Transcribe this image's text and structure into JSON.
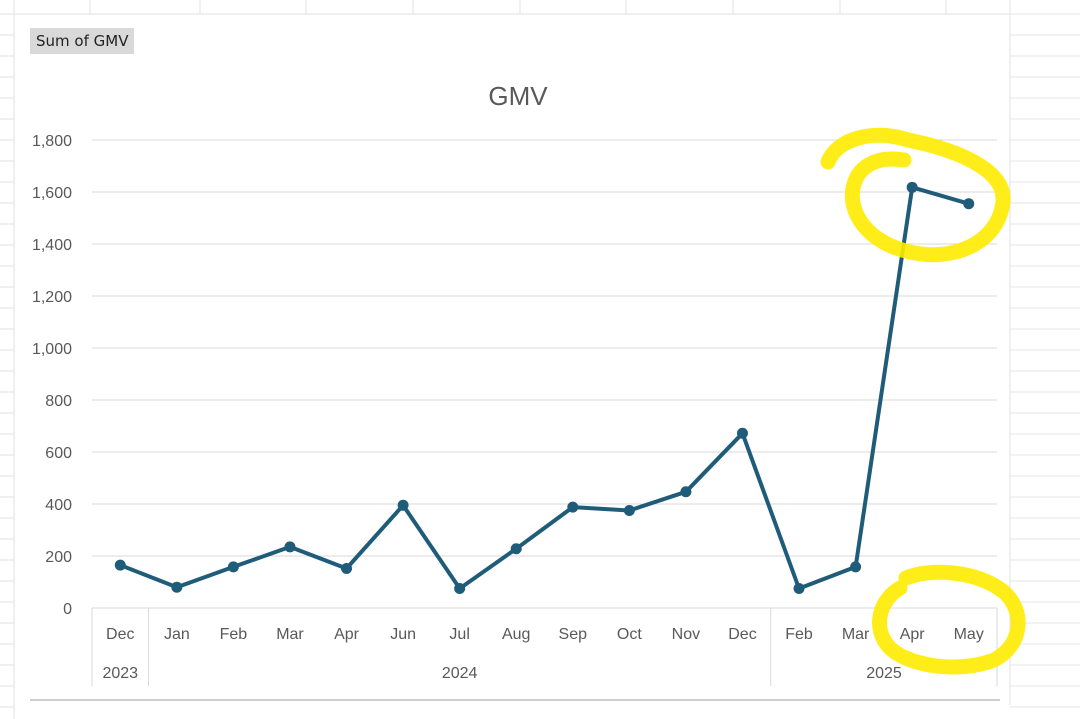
{
  "pivot_field_button": "Sum of GMV",
  "chart_data": {
    "type": "line",
    "title": "GMV",
    "xlabel": "",
    "ylabel": "",
    "ylim": [
      0,
      1800
    ],
    "y_ticks": [
      0,
      200,
      400,
      600,
      800,
      1000,
      1200,
      1400,
      1600,
      1800
    ],
    "y_tick_labels": [
      "0",
      "200",
      "400",
      "600",
      "800",
      "1,000",
      "1,200",
      "1,400",
      "1,600",
      "1,800"
    ],
    "grid": true,
    "categories": [
      "Dec",
      "Jan",
      "Feb",
      "Mar",
      "Apr",
      "Jun",
      "Jul",
      "Aug",
      "Sep",
      "Oct",
      "Nov",
      "Dec",
      "Feb",
      "Mar",
      "Apr",
      "May"
    ],
    "year_groups": [
      {
        "label": "2023",
        "count": 1
      },
      {
        "label": "2024",
        "count": 11
      },
      {
        "label": "2025",
        "count": 4
      }
    ],
    "series": [
      {
        "values": [
          165,
          80,
          158,
          235,
          152,
          395,
          75,
          228,
          388,
          375,
          447,
          672,
          75,
          158,
          1618,
          1555
        ]
      }
    ],
    "line_color": "#1f5c7a",
    "annotations": [
      {
        "kind": "yellow-highlight-circle",
        "target": "last two data points (Apr, May 2025)"
      },
      {
        "kind": "yellow-highlight-circle",
        "target": "x-axis labels Apr, May"
      }
    ],
    "highlight_color": "#ffeb00"
  }
}
